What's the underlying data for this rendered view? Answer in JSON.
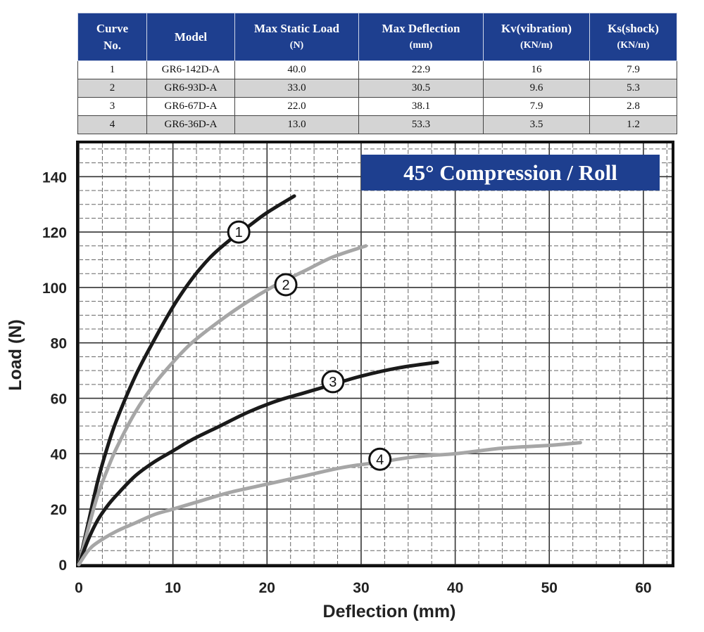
{
  "table": {
    "headers": [
      {
        "line1": "Curve",
        "line2": "No."
      },
      {
        "line1": "Model",
        "line2": ""
      },
      {
        "line1": "Max Static Load",
        "line2": "(N)"
      },
      {
        "line1": "Max Deflection",
        "line2": "(mm)"
      },
      {
        "line1": "Kv(vibration)",
        "line2": "(KN/m)"
      },
      {
        "line1": "Ks(shock)",
        "line2": "(KN/m)"
      }
    ],
    "rows": [
      [
        "1",
        "GR6-142D-A",
        "40.0",
        "22.9",
        "16",
        "7.9"
      ],
      [
        "2",
        "GR6-93D-A",
        "33.0",
        "30.5",
        "9.6",
        "5.3"
      ],
      [
        "3",
        "GR6-67D-A",
        "22.0",
        "38.1",
        "7.9",
        "2.8"
      ],
      [
        "4",
        "GR6-36D-A",
        "13.0",
        "53.3",
        "3.5",
        "1.2"
      ]
    ],
    "header_color": "#1e3f8f",
    "alt_row_color": "#d4d4d4"
  },
  "chart_data": {
    "type": "line",
    "title": "45° Compression / Roll",
    "xlabel": "Deflection (mm)",
    "ylabel": "Load (N)",
    "xlim": [
      0,
      63
    ],
    "ylim": [
      0,
      152
    ],
    "xticks": [
      0,
      10,
      20,
      30,
      40,
      50,
      60
    ],
    "yticks": [
      0,
      20,
      40,
      60,
      80,
      100,
      120,
      140
    ],
    "grid": true,
    "series": [
      {
        "name": "1",
        "color": "#1a1a1a",
        "x": [
          0,
          1,
          2,
          3,
          4,
          6,
          8,
          10,
          12,
          14,
          16,
          18,
          20,
          22.9
        ],
        "y": [
          0,
          15,
          30,
          42,
          52,
          68,
          81,
          93,
          103,
          111,
          117,
          122,
          127,
          133
        ],
        "marker_at": [
          17,
          120
        ]
      },
      {
        "name": "2",
        "color": "#a6a6a6",
        "x": [
          0,
          1,
          2,
          3,
          4,
          6,
          8,
          10,
          12,
          15,
          18,
          21,
          24,
          27,
          30.5
        ],
        "y": [
          0,
          13,
          25,
          34,
          42,
          55,
          65,
          73,
          80,
          88,
          95,
          101,
          106,
          111,
          115
        ],
        "marker_at": [
          22,
          101
        ]
      },
      {
        "name": "3",
        "color": "#1a1a1a",
        "x": [
          0,
          1,
          2,
          3,
          4,
          6,
          8,
          10,
          12,
          15,
          18,
          21,
          24,
          27,
          30,
          34,
          38.1
        ],
        "y": [
          0,
          9,
          16,
          21,
          25,
          32,
          37,
          41,
          45,
          50,
          55,
          59,
          62,
          65,
          68,
          71,
          73
        ],
        "marker_at": [
          27,
          66
        ]
      },
      {
        "name": "4",
        "color": "#a6a6a6",
        "x": [
          0,
          1,
          2,
          4,
          6,
          8,
          10,
          13,
          16,
          20,
          24,
          28,
          32,
          36,
          40,
          45,
          50,
          53.3
        ],
        "y": [
          0,
          5,
          8,
          12,
          15,
          18,
          20,
          23,
          26,
          29,
          32,
          35,
          37,
          39,
          40,
          42,
          43,
          44
        ],
        "marker_at": [
          32,
          38
        ]
      }
    ]
  }
}
